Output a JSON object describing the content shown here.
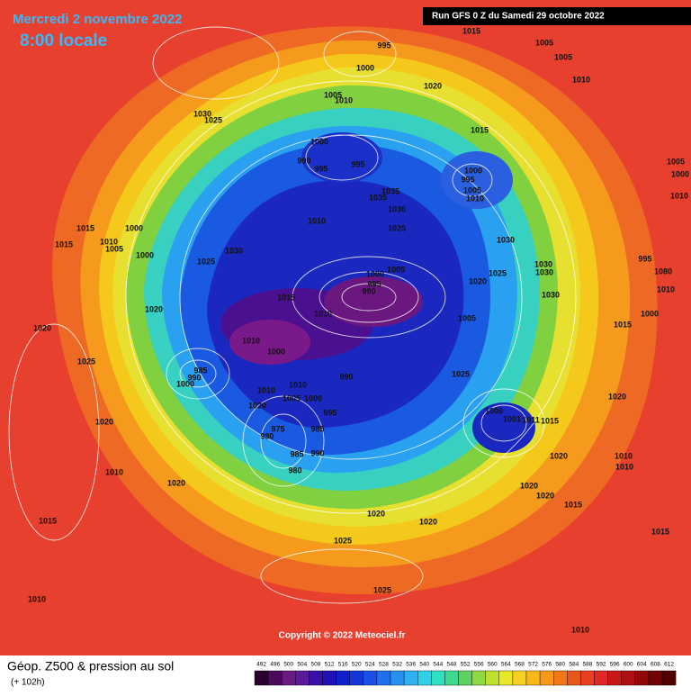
{
  "header": {
    "date": "Mercredi 2 novembre 2022",
    "time": "8:00 locale",
    "run": "Run GFS 0 Z du Samedi 29 octobre 2022"
  },
  "map": {
    "copyright": "Copyright © 2022 Meteociel.fr",
    "pressure_labels": [
      995,
      1000,
      1015,
      1005,
      1005,
      1010,
      1020,
      1005,
      1010,
      1030,
      1025,
      1015,
      1000,
      990,
      995,
      995,
      1000,
      995,
      1005,
      1010,
      1035,
      1035,
      1030,
      1010,
      1025,
      1030,
      1015,
      1015,
      1010,
      1000,
      1005,
      1000,
      1030,
      1025,
      995,
      1030,
      1030,
      1025,
      1020,
      1005,
      1000,
      995,
      990,
      1015,
      1020,
      1030,
      1010,
      1005,
      1015,
      1000,
      1080,
      1010,
      1020,
      1025,
      1010,
      1000,
      985,
      990,
      1000,
      990,
      1025,
      1010,
      1005,
      1000,
      1020,
      995,
      1010,
      1000,
      1001,
      1011,
      1015,
      1020,
      1020,
      975,
      980,
      985,
      985,
      990,
      980,
      1020,
      1010,
      1010,
      1010,
      1020,
      1020,
      1020,
      1020,
      1020,
      1015,
      1025,
      1015,
      1015,
      1025,
      1010,
      1010,
      1005,
      1000,
      1010
    ]
  },
  "footer": {
    "title": "Géop. Z500 & pression au sol",
    "lead": "(+ 102h)",
    "scale": {
      "labels": [
        492,
        496,
        500,
        504,
        508,
        512,
        516,
        520,
        524,
        528,
        532,
        536,
        540,
        544,
        548,
        552,
        556,
        560,
        564,
        568,
        572,
        576,
        580,
        584,
        588,
        592,
        596,
        600,
        604,
        608,
        612
      ],
      "colors": [
        "#2a0030",
        "#4a0a5a",
        "#6a1a80",
        "#5a1a9a",
        "#3a10a8",
        "#2010b8",
        "#1020c8",
        "#1438d8",
        "#1a50e8",
        "#2070f0",
        "#2890f0",
        "#30b0f0",
        "#30d0e8",
        "#30e0c0",
        "#40d890",
        "#60d060",
        "#90d840",
        "#c0e030",
        "#e8e828",
        "#f8d020",
        "#f8b818",
        "#f89818",
        "#f07818",
        "#e85818",
        "#e84020",
        "#e02828",
        "#c81818",
        "#b01010",
        "#900808",
        "#700404",
        "#500000"
      ]
    }
  }
}
